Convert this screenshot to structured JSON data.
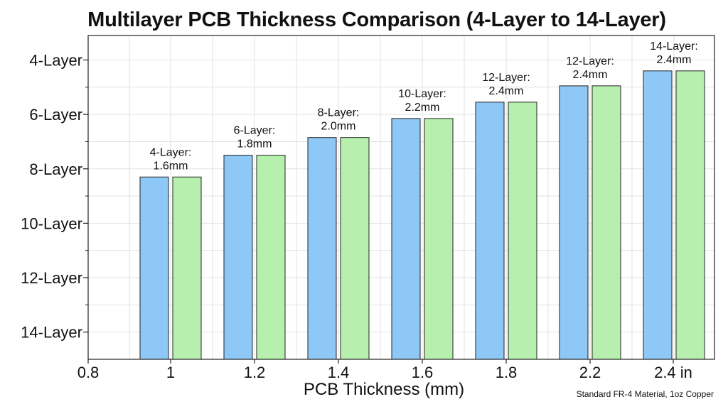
{
  "chart_data": {
    "type": "bar",
    "title": "Multilayer PCB Thickness Comparison (4-Layer to 14-Layer)",
    "xlabel": "PCB Thickness (mm)",
    "ylabel": "",
    "footnote": "Standard FR-4 Material, 1oz Copper",
    "x_tick_labels": [
      "0.8",
      "1",
      "1.2",
      "1.4",
      "1.6",
      "1.8",
      "2.2",
      "2.4 in"
    ],
    "y_tick_labels": [
      "4-Layer",
      "6-Layer",
      "8-Layer",
      "10-Layer",
      "12-Layer",
      "14-Layer"
    ],
    "y_axis_inverted": true,
    "ylim": [
      15,
      3.1
    ],
    "grid": true,
    "categories": [
      "1",
      "1.2",
      "1.4",
      "1.6",
      "1.8",
      "2.2",
      "2.4 in"
    ],
    "series": [
      {
        "color": "#8ec8f6",
        "values": [
          8.3,
          7.5,
          6.85,
          6.15,
          5.55,
          4.95,
          4.4
        ]
      },
      {
        "color": "#b7f0ae",
        "values": [
          8.3,
          7.5,
          6.85,
          6.15,
          5.55,
          4.95,
          4.4
        ]
      }
    ],
    "annotations": [
      {
        "line1": "4-Layer:",
        "line2": "1.6mm"
      },
      {
        "line1": "6-Layer:",
        "line2": "1.8mm"
      },
      {
        "line1": "8-Layer:",
        "line2": "2.0mm"
      },
      {
        "line1": "10-Layer:",
        "line2": "2.2mm"
      },
      {
        "line1": "12-Layer:",
        "line2": "2.4mm"
      },
      {
        "line1": "12-Layer:",
        "line2": "2.4mm"
      },
      {
        "line1": "14-Layer:",
        "line2": "2.4mm"
      }
    ]
  }
}
